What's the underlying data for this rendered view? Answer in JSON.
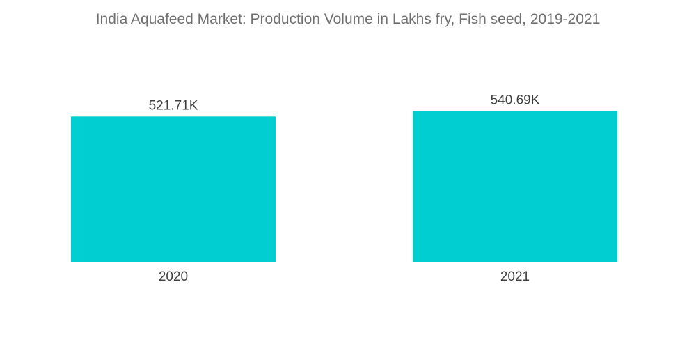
{
  "chart_data": {
    "type": "bar",
    "title": "India Aquafeed Market: Production Volume in Lakhs fry, Fish seed, 2019-2021",
    "categories": [
      "2020",
      "2021"
    ],
    "values": [
      521.71,
      540.69
    ],
    "data_labels": [
      "521.71K",
      "540.69K"
    ],
    "ylim": [
      0,
      560
    ],
    "grid": false,
    "legend": "none",
    "bar_color": "#00CED1"
  }
}
